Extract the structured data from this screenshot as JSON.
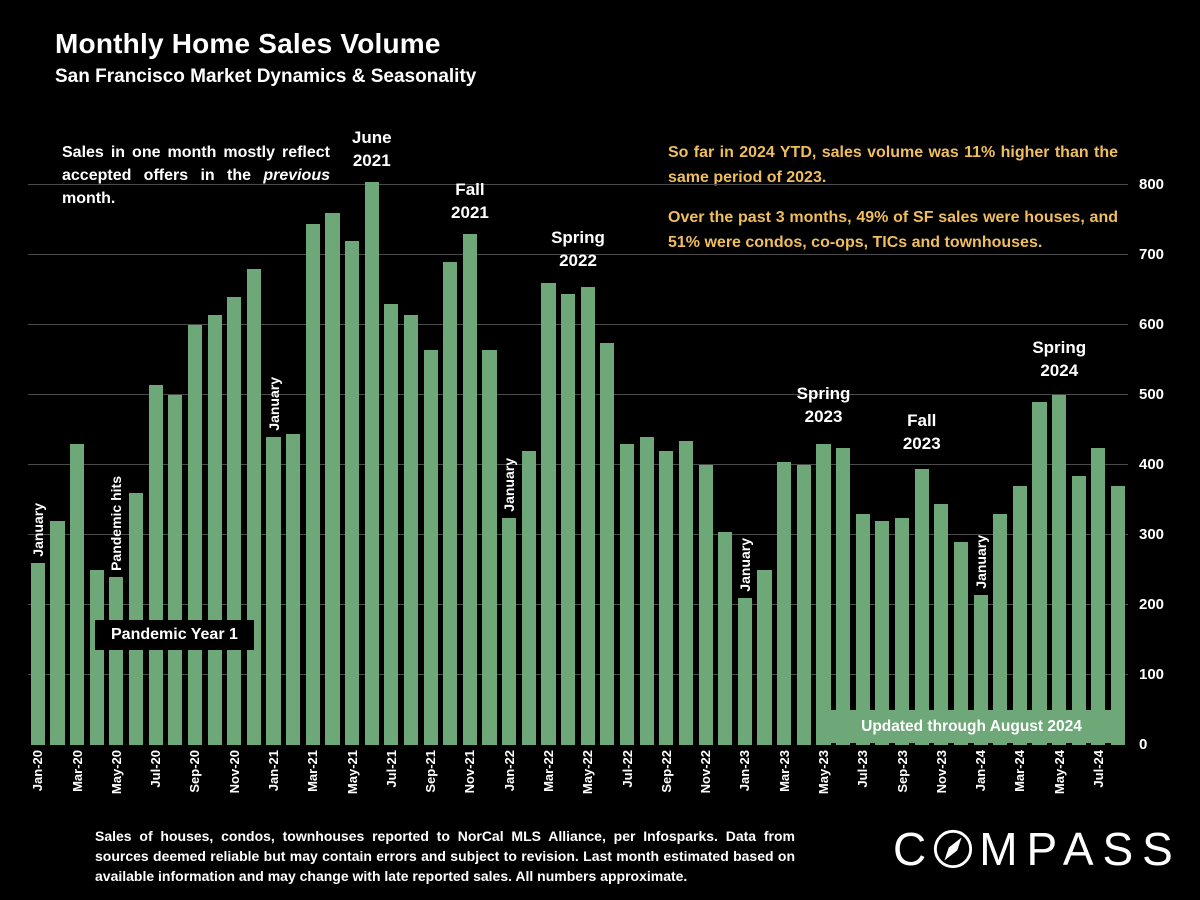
{
  "header": {
    "title": "Monthly Home Sales Volume",
    "subtitle": "San Francisco Market Dynamics & Seasonality"
  },
  "colors": {
    "bar_green": "#6FA878",
    "gold_text": "#F0BE5C",
    "grid": "#4B4B4B",
    "background": "#000000"
  },
  "callouts": {
    "offer_note": {
      "pre": "Sales in one month mostly reflect accepted offers in the ",
      "italic": "previous",
      "post": " month."
    },
    "ytd_note": "So far in 2024 YTD, sales volume was 11% higher than the same period of 2023.",
    "mix_note": "Over the past 3 months, 49% of SF sales were houses, and 51% were condos, co-ops, TICs and townhouses.",
    "pandemic_year": "Pandemic Year 1",
    "updated_banner": "Updated through August 2024"
  },
  "annotations": {
    "seasonal": [
      {
        "lines": [
          "June",
          "2021"
        ],
        "anchor_index": 17,
        "anchor_value": 805
      },
      {
        "lines": [
          "Fall",
          "2021"
        ],
        "anchor_index": 22,
        "anchor_value": 730
      },
      {
        "lines": [
          "Spring",
          "2022"
        ],
        "anchor_index": 27.5,
        "anchor_value": 662
      },
      {
        "lines": [
          "Spring",
          "2023"
        ],
        "anchor_index": 40,
        "anchor_value": 438
      },
      {
        "lines": [
          "Fall",
          "2023"
        ],
        "anchor_index": 45,
        "anchor_value": 400
      },
      {
        "lines": [
          "Spring",
          "2024"
        ],
        "anchor_index": 52,
        "anchor_value": 505
      }
    ]
  },
  "chart_data": {
    "type": "bar",
    "title": "Monthly Home Sales Volume",
    "xlabel": "",
    "ylabel": "",
    "ylim": [
      0,
      800
    ],
    "yticks": [
      0,
      100,
      200,
      300,
      400,
      500,
      600,
      700,
      800
    ],
    "grid": true,
    "legend": false,
    "x_tick_every": 2,
    "bar_color": "#6FA878",
    "x": [
      "Jan-20",
      "Feb-20",
      "Mar-20",
      "Apr-20",
      "May-20",
      "Jun-20",
      "Jul-20",
      "Aug-20",
      "Sep-20",
      "Oct-20",
      "Nov-20",
      "Dec-20",
      "Jan-21",
      "Feb-21",
      "Mar-21",
      "Apr-21",
      "May-21",
      "Jun-21",
      "Jul-21",
      "Aug-21",
      "Sep-21",
      "Oct-21",
      "Nov-21",
      "Dec-21",
      "Jan-22",
      "Feb-22",
      "Mar-22",
      "Apr-22",
      "May-22",
      "Jun-22",
      "Jul-22",
      "Aug-22",
      "Sep-22",
      "Oct-22",
      "Nov-22",
      "Dec-22",
      "Jan-23",
      "Feb-23",
      "Mar-23",
      "Apr-23",
      "May-23",
      "Jun-23",
      "Jul-23",
      "Aug-23",
      "Sep-23",
      "Oct-23",
      "Nov-23",
      "Dec-23",
      "Jan-24",
      "Feb-24",
      "Mar-24",
      "Apr-24",
      "May-24",
      "Jun-24",
      "Jul-24",
      "Aug-24"
    ],
    "values": [
      260,
      320,
      430,
      250,
      240,
      360,
      515,
      500,
      600,
      615,
      640,
      680,
      440,
      445,
      745,
      760,
      720,
      805,
      630,
      615,
      565,
      690,
      730,
      565,
      325,
      420,
      660,
      645,
      655,
      575,
      430,
      440,
      420,
      435,
      400,
      305,
      210,
      250,
      405,
      400,
      430,
      425,
      330,
      320,
      325,
      395,
      345,
      290,
      215,
      330,
      370,
      490,
      500,
      385,
      425,
      370
    ],
    "bar_labels": [
      {
        "index": 0,
        "text": "January"
      },
      {
        "index": 4,
        "text": "Pandemic hits"
      },
      {
        "index": 12,
        "text": "January"
      },
      {
        "index": 24,
        "text": "January"
      },
      {
        "index": 36,
        "text": "January"
      },
      {
        "index": 48,
        "text": "January"
      }
    ]
  },
  "footer": {
    "disclaimer": "Sales of houses, condos, townhouses reported to NorCal MLS Alliance, per Infosparks. Data from sources deemed reliable but may contain errors and subject to revision. Last month estimated based on available information and may change with late reported sales. All numbers approximate.",
    "brand_c": "C",
    "brand_rest": "MPASS"
  }
}
